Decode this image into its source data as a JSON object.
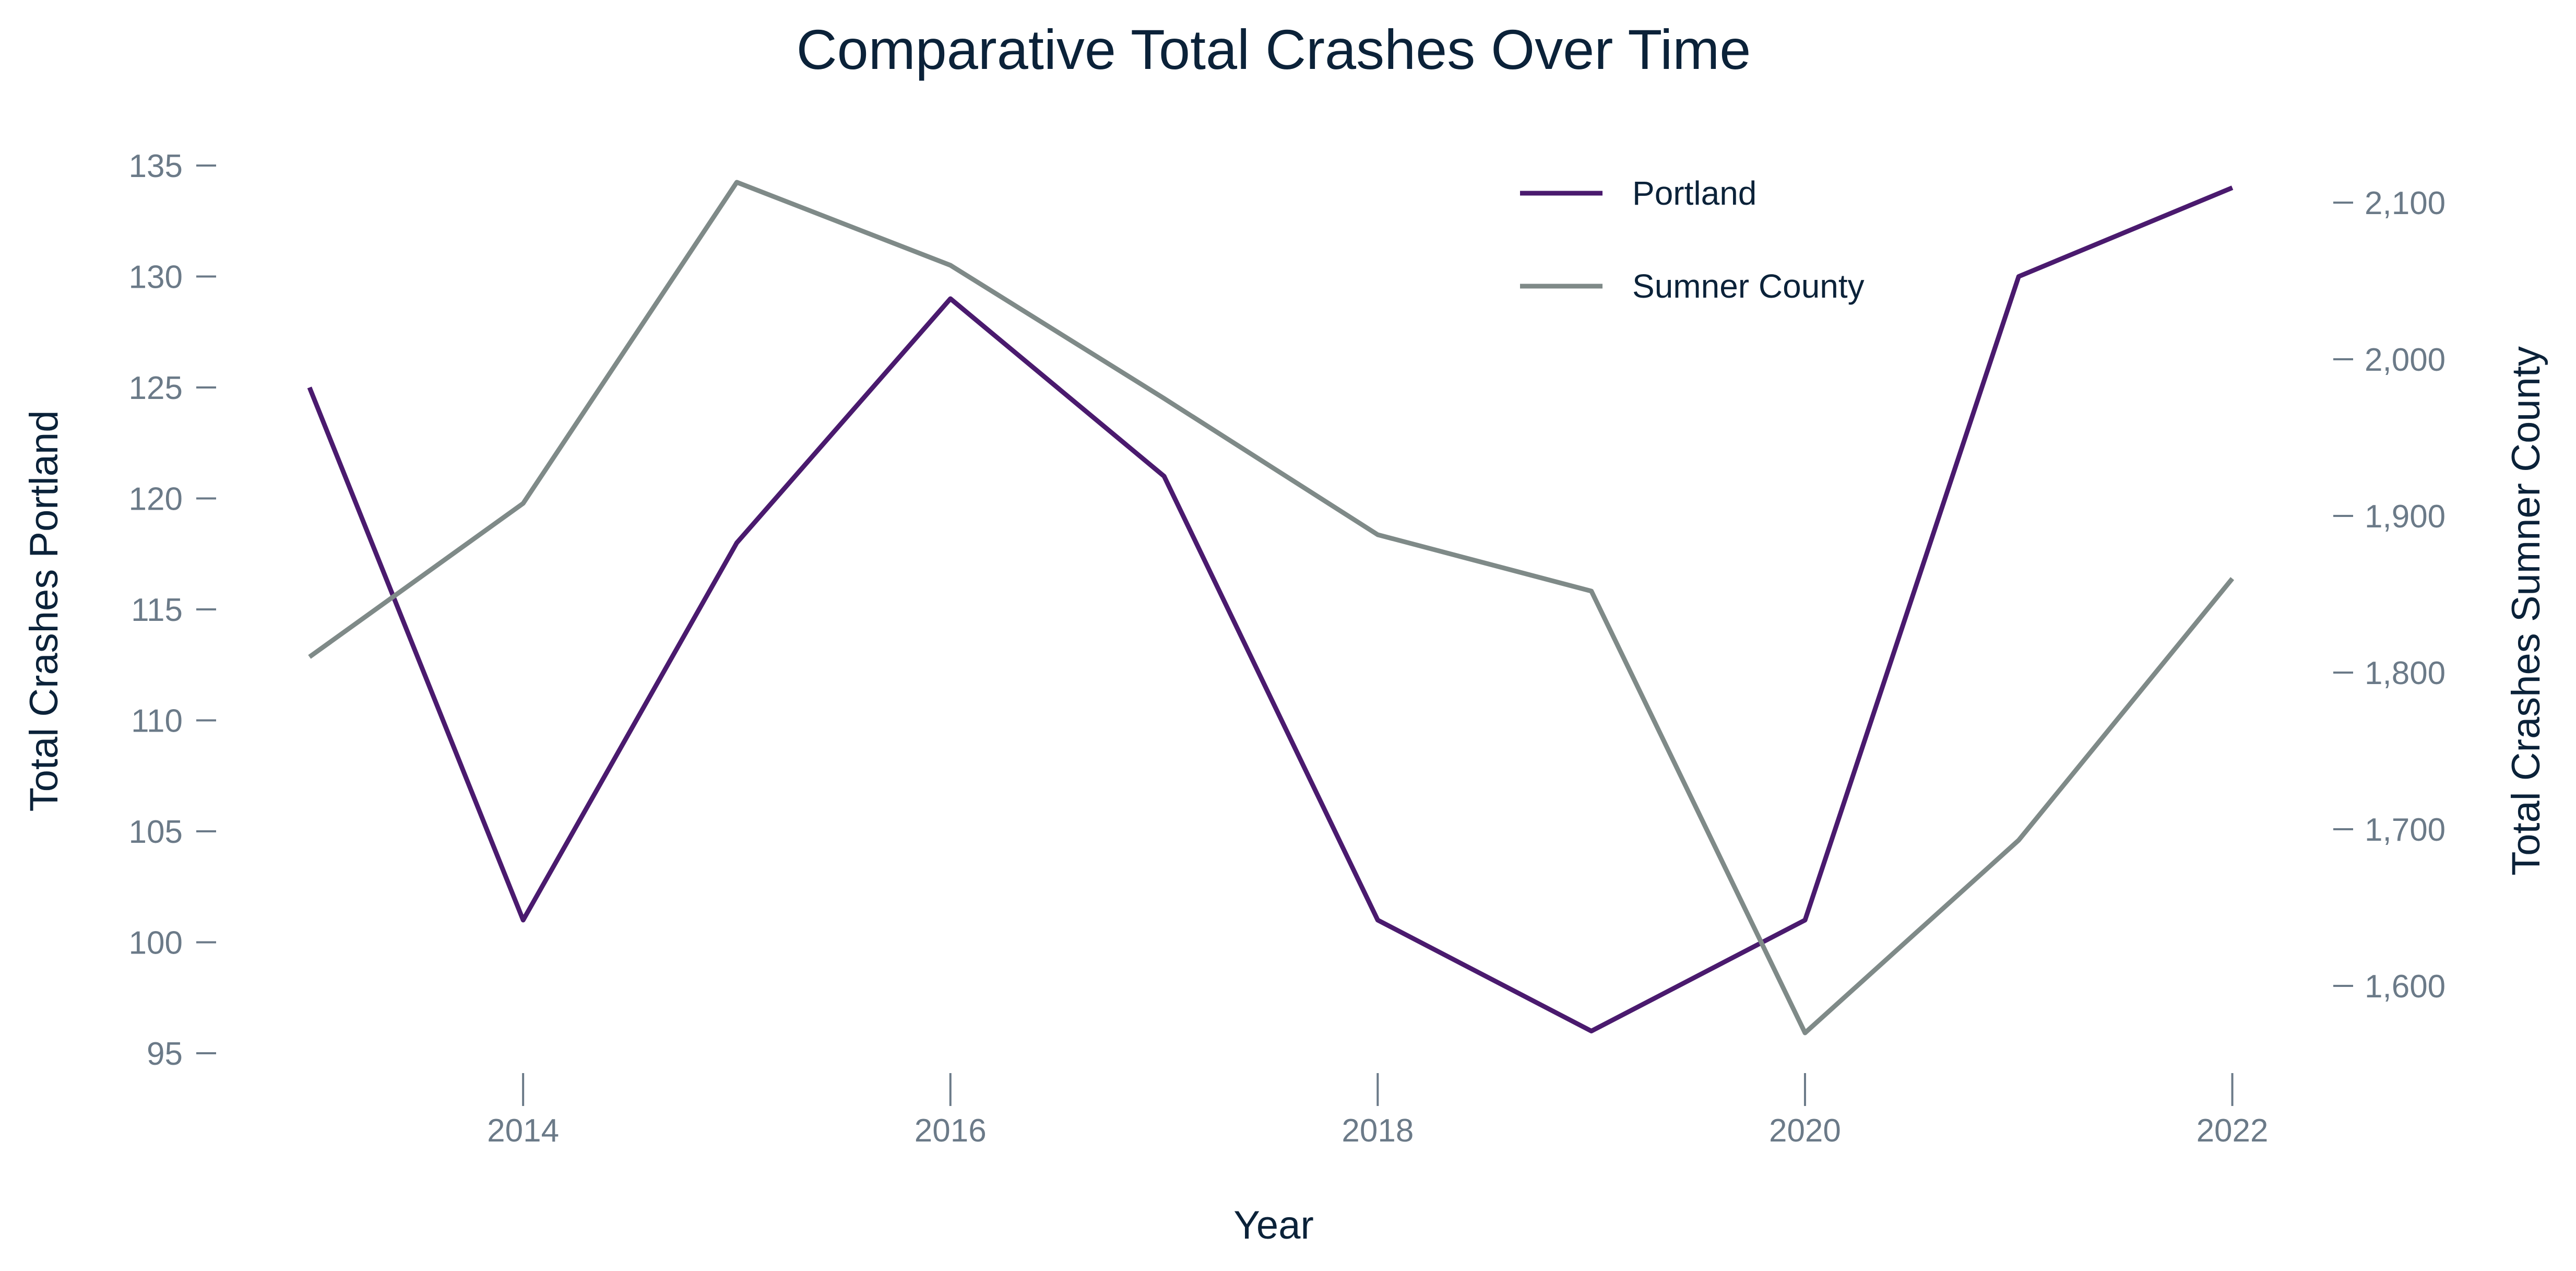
{
  "chart_data": {
    "type": "line",
    "title": "Comparative Total Crashes Over Time",
    "xlabel": "Year",
    "ylabel_left": "Total Crashes Portland",
    "ylabel_right": "Total Crashes Sumner County",
    "x": [
      2013,
      2014,
      2015,
      2016,
      2017,
      2018,
      2019,
      2020,
      2021,
      2022
    ],
    "x_ticks": [
      2014,
      2016,
      2018,
      2020,
      2022
    ],
    "x_tick_labels": [
      "2014",
      "2016",
      "2018",
      "2020",
      "2022"
    ],
    "xlim": [
      2012,
      2023
    ],
    "left_axis": {
      "ylim": [
        95,
        135
      ],
      "ticks": [
        95,
        100,
        105,
        110,
        115,
        120,
        125,
        130,
        135
      ],
      "tick_labels": [
        "95",
        "100",
        "105",
        "110",
        "115",
        "120",
        "125",
        "130",
        "135"
      ]
    },
    "right_axis": {
      "ylim": [
        1550,
        2127
      ],
      "ticks": [
        1600,
        1700,
        1800,
        1900,
        2000,
        2100
      ],
      "tick_labels": [
        "1,600",
        "1,700",
        "1,800",
        "1,900",
        "2,000",
        "2,100"
      ]
    },
    "series": [
      {
        "name": "Portland",
        "axis": "left",
        "color": "#4a1a6e",
        "values": [
          125,
          101,
          118,
          129,
          121,
          101,
          96,
          101,
          130,
          134
        ]
      },
      {
        "name": "Sumner County",
        "axis": "right",
        "color": "#7f8a88",
        "values": [
          1810,
          1908,
          2113,
          2060,
          1975,
          1888,
          1852,
          1570,
          1693,
          1860
        ]
      }
    ],
    "legend_position": "top-right",
    "grid": false
  }
}
